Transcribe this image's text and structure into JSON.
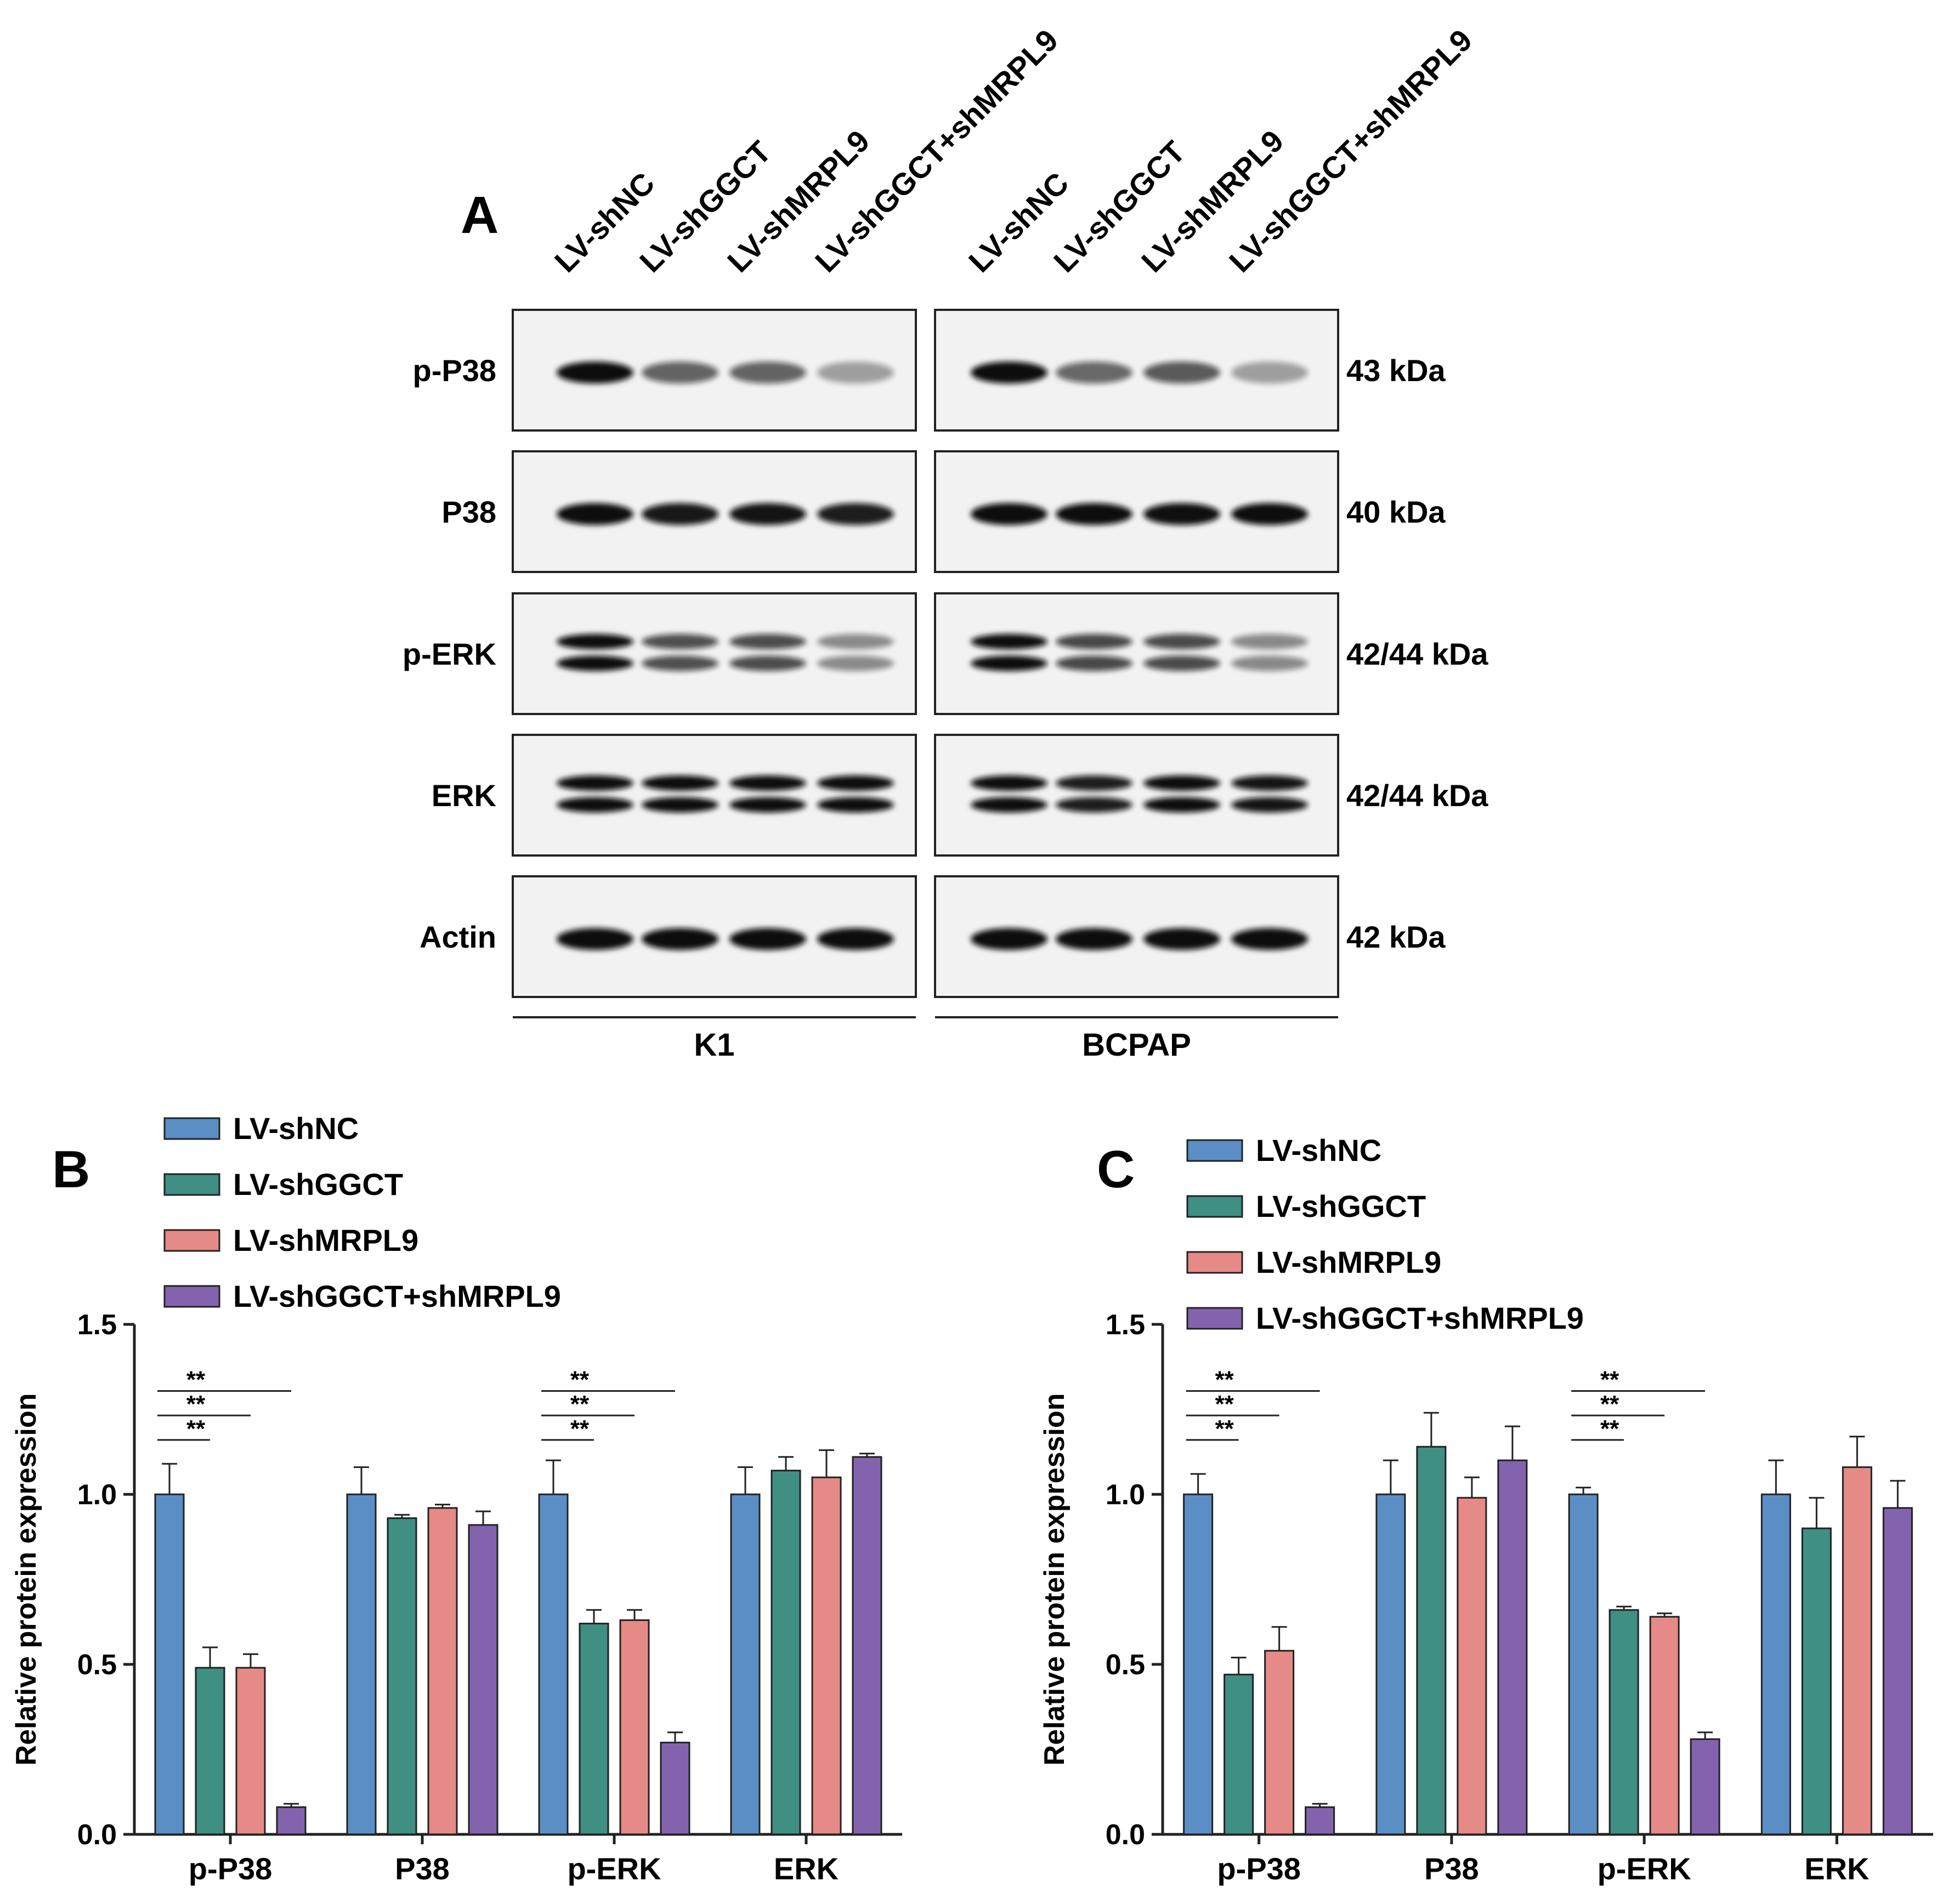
{
  "panel_a": {
    "label": "A",
    "lanes": [
      "LV-shNC",
      "LV-shGGCT",
      "LV-shMRPL9",
      "LV-shGGCT+shMRPL9",
      "LV-shNC",
      "LV-shGGCT",
      "LV-shMRPL9",
      "LV-shGGCT+shMRPL9"
    ],
    "cell_lines": [
      "K1",
      "BCPAP"
    ],
    "blots": [
      {
        "protein": "p-P38",
        "size": "43 kDa",
        "k1": [
          1.0,
          0.49,
          0.49,
          0.08
        ],
        "bcpap": [
          1.0,
          0.47,
          0.54,
          0.08
        ]
      },
      {
        "protein": "P38",
        "size": "40 kDa",
        "k1": [
          1.0,
          0.93,
          0.96,
          0.91
        ],
        "bcpap": [
          1.0,
          1.14,
          0.99,
          1.1
        ]
      },
      {
        "protein": "p-ERK",
        "size": "42/44 kDa",
        "k1": [
          1.0,
          0.62,
          0.63,
          0.27
        ],
        "bcpap": [
          1.0,
          0.66,
          0.64,
          0.28
        ]
      },
      {
        "protein": "ERK",
        "size": "42/44 kDa",
        "k1": [
          1.0,
          1.07,
          1.05,
          1.11
        ],
        "bcpap": [
          1.0,
          0.9,
          1.08,
          0.96
        ]
      },
      {
        "protein": "Actin",
        "size": "42 kDa",
        "k1": [
          1.0,
          1.0,
          1.0,
          1.0
        ],
        "bcpap": [
          1.0,
          1.0,
          1.0,
          1.0
        ]
      }
    ]
  },
  "chart_data": [
    {
      "panel": "B",
      "type": "bar",
      "ylabel": "Relative protein expression",
      "ylim": [
        0,
        1.5
      ],
      "yticks": [
        "0.0",
        "0.5",
        "1.0",
        "1.5"
      ],
      "categories": [
        "p-P38",
        "P38",
        "p-ERK",
        "ERK"
      ],
      "legend_position": "top-left",
      "series": [
        {
          "name": "LV-shNC",
          "color": "#5b8ec5",
          "values": [
            1.0,
            1.0,
            1.0,
            1.0
          ],
          "errors": [
            0.09,
            0.08,
            0.1,
            0.08
          ]
        },
        {
          "name": "LV-shGGCT",
          "color": "#3f8f82",
          "values": [
            0.49,
            0.93,
            0.62,
            1.07
          ],
          "errors": [
            0.06,
            0.01,
            0.04,
            0.04
          ]
        },
        {
          "name": "LV-shMRPL9",
          "color": "#e58a86",
          "values": [
            0.49,
            0.96,
            0.63,
            1.05
          ],
          "errors": [
            0.04,
            0.01,
            0.03,
            0.08
          ]
        },
        {
          "name": "LV-shGGCT+shMRPL9",
          "color": "#8463ae",
          "values": [
            0.08,
            0.91,
            0.27,
            1.11
          ],
          "errors": [
            0.01,
            0.04,
            0.03,
            0.01
          ]
        }
      ],
      "significance": [
        {
          "category": "p-P38",
          "label": "**",
          "from": 0,
          "to": 1
        },
        {
          "category": "p-P38",
          "label": "**",
          "from": 0,
          "to": 2
        },
        {
          "category": "p-P38",
          "label": "**",
          "from": 0,
          "to": 3
        },
        {
          "category": "p-ERK",
          "label": "**",
          "from": 0,
          "to": 1
        },
        {
          "category": "p-ERK",
          "label": "**",
          "from": 0,
          "to": 2
        },
        {
          "category": "p-ERK",
          "label": "**",
          "from": 0,
          "to": 3
        }
      ]
    },
    {
      "panel": "C",
      "type": "bar",
      "ylabel": "Relative protein expression",
      "ylim": [
        0,
        1.5
      ],
      "yticks": [
        "0.0",
        "0.5",
        "1.0",
        "1.5"
      ],
      "categories": [
        "p-P38",
        "P38",
        "p-ERK",
        "ERK"
      ],
      "legend_position": "top-left",
      "series": [
        {
          "name": "LV-shNC",
          "color": "#5b8ec5",
          "values": [
            1.0,
            1.0,
            1.0,
            1.0
          ],
          "errors": [
            0.06,
            0.1,
            0.02,
            0.1
          ]
        },
        {
          "name": "LV-shGGCT",
          "color": "#3f8f82",
          "values": [
            0.47,
            1.14,
            0.66,
            0.9
          ],
          "errors": [
            0.05,
            0.1,
            0.01,
            0.09
          ]
        },
        {
          "name": "LV-shMRPL9",
          "color": "#e58a86",
          "values": [
            0.54,
            0.99,
            0.64,
            1.08
          ],
          "errors": [
            0.07,
            0.06,
            0.01,
            0.09
          ]
        },
        {
          "name": "LV-shGGCT+shMRPL9",
          "color": "#8463ae",
          "values": [
            0.08,
            1.1,
            0.28,
            0.96
          ],
          "errors": [
            0.01,
            0.1,
            0.02,
            0.08
          ]
        }
      ],
      "significance": [
        {
          "category": "p-P38",
          "label": "**",
          "from": 0,
          "to": 1
        },
        {
          "category": "p-P38",
          "label": "**",
          "from": 0,
          "to": 2
        },
        {
          "category": "p-P38",
          "label": "**",
          "from": 0,
          "to": 3
        },
        {
          "category": "p-ERK",
          "label": "**",
          "from": 0,
          "to": 1
        },
        {
          "category": "p-ERK",
          "label": "**",
          "from": 0,
          "to": 2
        },
        {
          "category": "p-ERK",
          "label": "**",
          "from": 0,
          "to": 3
        }
      ]
    }
  ]
}
